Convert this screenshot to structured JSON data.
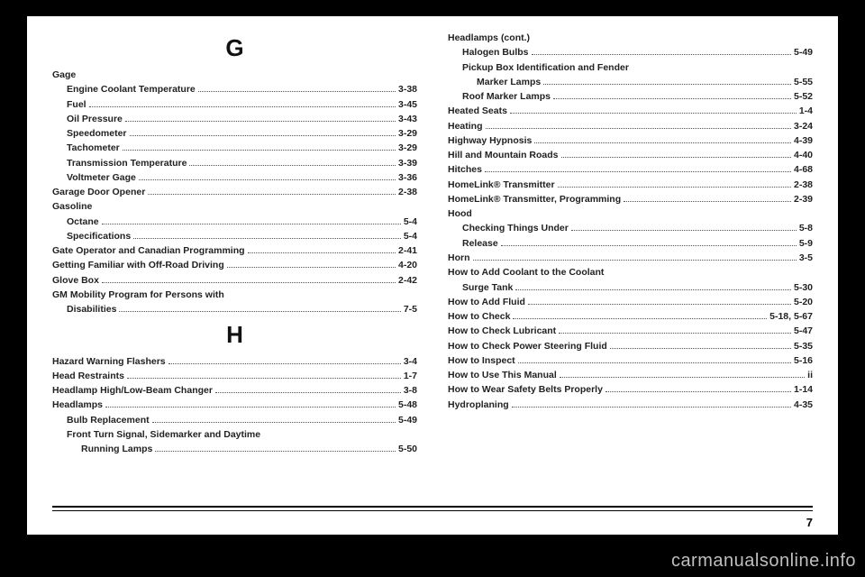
{
  "page_number": "7",
  "watermark": "carmanualsonline.info",
  "left": {
    "sections": [
      {
        "letter": "G",
        "entries": [
          {
            "label": "Gage",
            "page": "",
            "indent": 0,
            "header": true
          },
          {
            "label": "Engine Coolant Temperature",
            "page": "3-38",
            "indent": 1
          },
          {
            "label": "Fuel",
            "page": "3-45",
            "indent": 1
          },
          {
            "label": "Oil Pressure",
            "page": "3-43",
            "indent": 1
          },
          {
            "label": "Speedometer",
            "page": "3-29",
            "indent": 1
          },
          {
            "label": "Tachometer",
            "page": "3-29",
            "indent": 1
          },
          {
            "label": "Transmission Temperature",
            "page": "3-39",
            "indent": 1
          },
          {
            "label": "Voltmeter Gage",
            "page": "3-36",
            "indent": 1
          },
          {
            "label": "Garage Door Opener",
            "page": "2-38",
            "indent": 0
          },
          {
            "label": "Gasoline",
            "page": "",
            "indent": 0,
            "header": true
          },
          {
            "label": "Octane",
            "page": "5-4",
            "indent": 1
          },
          {
            "label": "Specifications",
            "page": "5-4",
            "indent": 1
          },
          {
            "label": "Gate Operator and Canadian Programming",
            "page": "2-41",
            "indent": 0
          },
          {
            "label": "Getting Familiar with Off-Road Driving",
            "page": "4-20",
            "indent": 0
          },
          {
            "label": "Glove Box",
            "page": "2-42",
            "indent": 0
          },
          {
            "label": "GM Mobility Program for Persons with",
            "page": "",
            "indent": 0,
            "header": true
          },
          {
            "label": "Disabilities",
            "page": "7-5",
            "indent": 1
          }
        ]
      },
      {
        "letter": "H",
        "entries": [
          {
            "label": "Hazard Warning Flashers",
            "page": "3-4",
            "indent": 0
          },
          {
            "label": "Head Restraints",
            "page": "1-7",
            "indent": 0
          },
          {
            "label": "Headlamp High/Low-Beam Changer",
            "page": "3-8",
            "indent": 0
          },
          {
            "label": "Headlamps",
            "page": "5-48",
            "indent": 0
          },
          {
            "label": "Bulb Replacement",
            "page": "5-49",
            "indent": 1
          },
          {
            "label": "Front Turn Signal, Sidemarker and Daytime",
            "page": "",
            "indent": 1,
            "header": true
          },
          {
            "label": "Running Lamps",
            "page": "5-50",
            "indent": 2
          }
        ]
      }
    ]
  },
  "right": {
    "sections": [
      {
        "entries": [
          {
            "label": "Headlamps (cont.)",
            "page": "",
            "indent": 0,
            "header": true
          },
          {
            "label": "Halogen Bulbs",
            "page": "5-49",
            "indent": 1
          },
          {
            "label": "Pickup Box Identification and Fender",
            "page": "",
            "indent": 1,
            "header": true
          },
          {
            "label": "Marker Lamps",
            "page": "5-55",
            "indent": 2
          },
          {
            "label": "Roof Marker Lamps",
            "page": "5-52",
            "indent": 1
          },
          {
            "label": "Heated Seats",
            "page": "1-4",
            "indent": 0
          },
          {
            "label": "Heating",
            "page": "3-24",
            "indent": 0
          },
          {
            "label": "Highway Hypnosis",
            "page": "4-39",
            "indent": 0
          },
          {
            "label": "Hill and Mountain Roads",
            "page": "4-40",
            "indent": 0
          },
          {
            "label": "Hitches",
            "page": "4-68",
            "indent": 0
          },
          {
            "label": "HomeLink® Transmitter",
            "page": "2-38",
            "indent": 0
          },
          {
            "label": "HomeLink® Transmitter, Programming",
            "page": "2-39",
            "indent": 0
          },
          {
            "label": "Hood",
            "page": "",
            "indent": 0,
            "header": true
          },
          {
            "label": "Checking Things Under",
            "page": "5-8",
            "indent": 1
          },
          {
            "label": "Release",
            "page": "5-9",
            "indent": 1
          },
          {
            "label": "Horn",
            "page": "3-5",
            "indent": 0
          },
          {
            "label": "How to Add Coolant to the Coolant",
            "page": "",
            "indent": 0,
            "header": true
          },
          {
            "label": "Surge Tank",
            "page": "5-30",
            "indent": 1
          },
          {
            "label": "How to Add Fluid",
            "page": "5-20",
            "indent": 0
          },
          {
            "label": "How to Check",
            "page": "5-18, 5-67",
            "indent": 0
          },
          {
            "label": "How to Check Lubricant",
            "page": "5-47",
            "indent": 0
          },
          {
            "label": "How to Check Power Steering Fluid",
            "page": "5-35",
            "indent": 0
          },
          {
            "label": "How to Inspect",
            "page": "5-16",
            "indent": 0
          },
          {
            "label": "How to Use This Manual",
            "page": "ii",
            "indent": 0
          },
          {
            "label": "How to Wear Safety Belts Properly",
            "page": "1-14",
            "indent": 0
          },
          {
            "label": "Hydroplaning",
            "page": "4-35",
            "indent": 0
          }
        ]
      }
    ]
  }
}
